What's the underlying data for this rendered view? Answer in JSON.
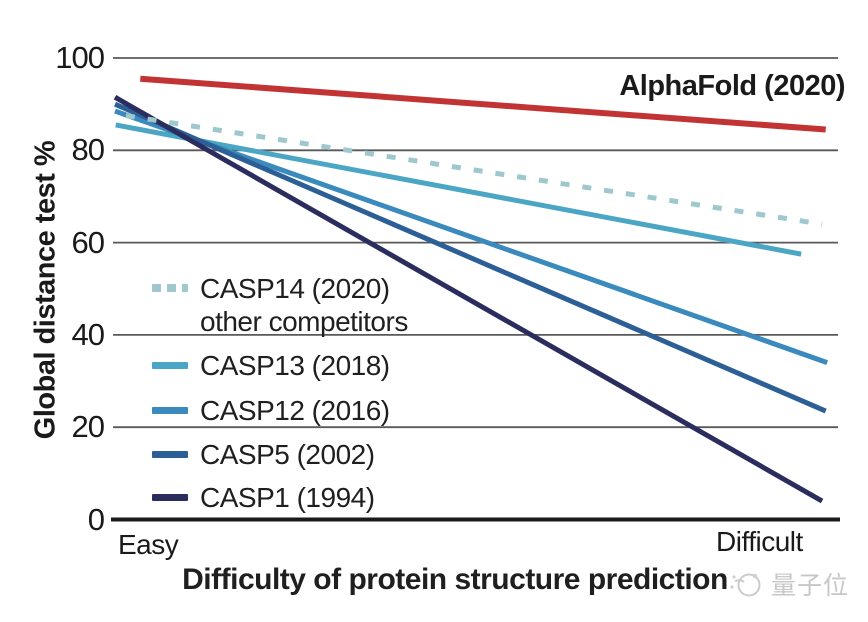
{
  "figure": {
    "watermark": {
      "text": "量子位",
      "color": "#c2c2c2"
    }
  },
  "chart_data": {
    "type": "line",
    "title": "",
    "xlabel": "Difficulty of protein structure prediction",
    "ylabel": "Global distance test %",
    "x_axis": {
      "left_label": "Easy",
      "right_label": "Difficult"
    },
    "ylim": [
      0,
      100
    ],
    "yticks": [
      0,
      20,
      40,
      60,
      80,
      100
    ],
    "grid": "horizontal",
    "grid_color": "#595959",
    "axis_color": "#1a1a1a",
    "annotation": "AlphaFold (2020)",
    "legend_position": "inside-left-bottom",
    "series": [
      {
        "id": "alphafold",
        "label": "AlphaFold (2020)",
        "color": "#c23434",
        "style": "solid",
        "width": 6,
        "z": 6,
        "x_span": [
          0.035,
          0.983
        ],
        "values": {
          "easy": 95.5,
          "difficult": 84.5
        }
      },
      {
        "id": "casp14",
        "label": "CASP14 (2020)",
        "sublabel": "other competitors",
        "color": "#9fc8ce",
        "style": "dashed",
        "width": 5,
        "z": 5,
        "x_span": [
          0.015,
          0.978
        ],
        "values": {
          "easy": 87.5,
          "difficult": 64
        }
      },
      {
        "id": "casp13",
        "label": "CASP13 (2018)",
        "color": "#4aa6c4",
        "style": "solid",
        "width": 5,
        "z": 1,
        "x_span": [
          0.001,
          0.949
        ],
        "values": {
          "easy": 85.5,
          "difficult": 57.5
        }
      },
      {
        "id": "casp12",
        "label": "CASP12 (2016)",
        "color": "#3a8abd",
        "style": "solid",
        "width": 5,
        "z": 2,
        "x_span": [
          0.0,
          0.985
        ],
        "values": {
          "easy": 88.5,
          "difficult": 34
        }
      },
      {
        "id": "casp5",
        "label": "CASP5 (2002)",
        "color": "#2d5f97",
        "style": "solid",
        "width": 5,
        "z": 3,
        "x_span": [
          0.0,
          0.983
        ],
        "values": {
          "easy": 90,
          "difficult": 23.5
        }
      },
      {
        "id": "casp1",
        "label": "CASP1 (1994)",
        "color": "#2b2d5e",
        "style": "solid",
        "width": 5,
        "z": 4,
        "x_span": [
          0.0,
          0.978
        ],
        "values": {
          "easy": 91.5,
          "difficult": 4
        }
      }
    ]
  }
}
